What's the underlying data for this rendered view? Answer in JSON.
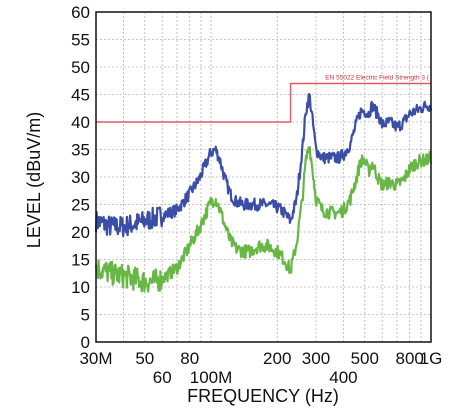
{
  "chart_data": {
    "type": "line",
    "xlabel": "FREQUENCY (Hz)",
    "ylabel": "LEVEL (dBuV/m)",
    "x_scale": "log",
    "xlim": [
      30000000,
      1000000000
    ],
    "ylim": [
      0,
      60
    ],
    "grid": true,
    "y_ticks": [
      0,
      5,
      10,
      15,
      20,
      25,
      30,
      35,
      40,
      45,
      50,
      55,
      60
    ],
    "x_ticks": [
      {
        "value": 30000000,
        "label": "30M",
        "row": 0
      },
      {
        "value": 50000000,
        "label": "50",
        "row": 0
      },
      {
        "value": 60000000,
        "label": "60",
        "row": 1
      },
      {
        "value": 80000000,
        "label": "80",
        "row": 0
      },
      {
        "value": 100000000,
        "label": "100M",
        "row": 1
      },
      {
        "value": 200000000,
        "label": "200",
        "row": 0
      },
      {
        "value": 300000000,
        "label": "300",
        "row": 0
      },
      {
        "value": 400000000,
        "label": "400",
        "row": 1
      },
      {
        "value": 500000000,
        "label": "500",
        "row": 0
      },
      {
        "value": 800000000,
        "label": "800",
        "row": 0
      },
      {
        "value": 1000000000,
        "label": "1G",
        "row": 0
      }
    ],
    "limit": {
      "label": "EN 55022 Electric Field Strength 3 (",
      "color": "#e05a68",
      "x": [
        30000000,
        230000000,
        230000000,
        1000000000
      ],
      "y": [
        40,
        40,
        47,
        47
      ]
    },
    "series": [
      {
        "color": "#3a4ea8",
        "noise": 1.1,
        "x": [
          30000000,
          35000000,
          40000000,
          45000000,
          50000000,
          55000000,
          60000000,
          65000000,
          70000000,
          75000000,
          80000000,
          88000000,
          95000000,
          100000000,
          105000000,
          110000000,
          115000000,
          122000000,
          130000000,
          140000000,
          150000000,
          165000000,
          180000000,
          200000000,
          215000000,
          230000000,
          245000000,
          260000000,
          270000000,
          280000000,
          290000000,
          300000000,
          320000000,
          350000000,
          380000000,
          400000000,
          430000000,
          460000000,
          480000000,
          500000000,
          520000000,
          540000000,
          560000000,
          580000000,
          600000000,
          650000000,
          700000000,
          750000000,
          800000000,
          850000000,
          900000000,
          950000000,
          1000000000
        ],
        "y": [
          22,
          21,
          21,
          21.5,
          22,
          22.5,
          23,
          23.5,
          24,
          25.5,
          27,
          29.5,
          32.5,
          34.5,
          35,
          33,
          30,
          27,
          25.5,
          25,
          25,
          25,
          25,
          24.5,
          23.5,
          22,
          26,
          35,
          42,
          45,
          40,
          35,
          33.5,
          33.5,
          33.5,
          34,
          36,
          40,
          42,
          42,
          41.5,
          43,
          42,
          41,
          39.5,
          40,
          39,
          40,
          41.5,
          42,
          42.5,
          43,
          43
        ]
      },
      {
        "color": "#66b744",
        "noise": 1.2,
        "x": [
          30000000,
          35000000,
          40000000,
          45000000,
          50000000,
          55000000,
          60000000,
          65000000,
          70000000,
          75000000,
          80000000,
          88000000,
          95000000,
          100000000,
          105000000,
          110000000,
          115000000,
          122000000,
          130000000,
          140000000,
          150000000,
          165000000,
          180000000,
          200000000,
          215000000,
          230000000,
          245000000,
          260000000,
          270000000,
          280000000,
          290000000,
          300000000,
          320000000,
          350000000,
          380000000,
          400000000,
          430000000,
          460000000,
          480000000,
          500000000,
          520000000,
          540000000,
          560000000,
          580000000,
          600000000,
          650000000,
          700000000,
          750000000,
          800000000,
          850000000,
          900000000,
          950000000,
          1000000000
        ],
        "y": [
          13.5,
          12.5,
          12,
          11.5,
          11,
          11,
          11.5,
          12.5,
          13.5,
          15.5,
          17.5,
          20.5,
          23.5,
          25.5,
          26,
          24,
          21.5,
          18.5,
          17,
          16.5,
          16.5,
          17.5,
          17.5,
          16.5,
          15,
          13,
          18,
          26,
          33,
          36,
          31,
          26,
          24,
          23.5,
          23.5,
          24,
          26,
          30,
          33,
          33,
          31,
          32.5,
          31,
          29.5,
          28.5,
          29,
          28.5,
          29.5,
          31.5,
          32.5,
          33,
          33,
          33.5
        ]
      }
    ]
  }
}
